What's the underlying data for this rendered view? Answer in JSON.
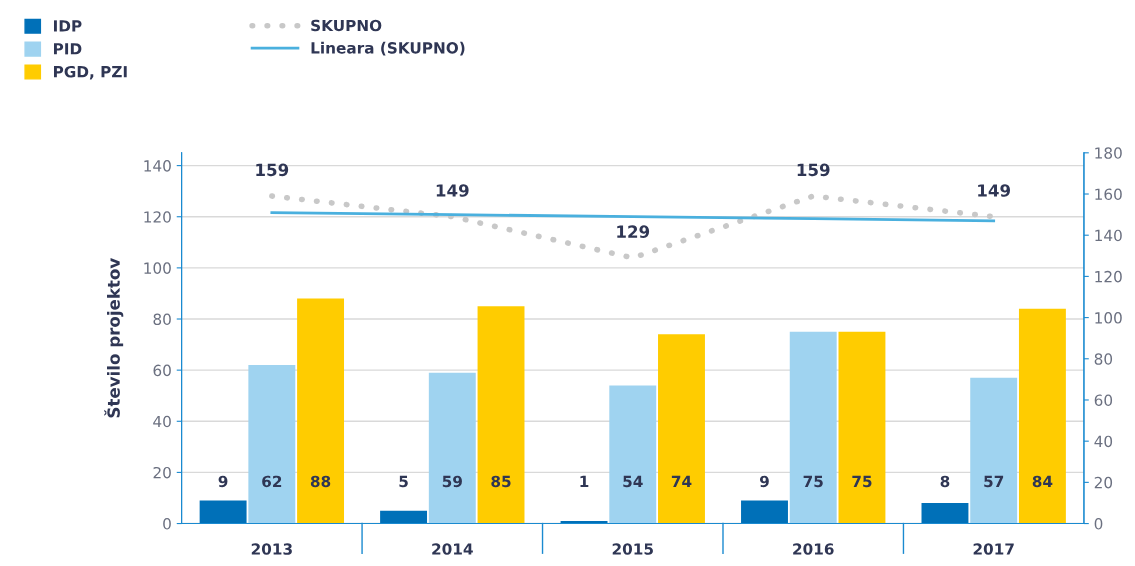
{
  "chart_data": {
    "type": "bar",
    "ylabel": "Število projektov",
    "categories": [
      "2013",
      "2014",
      "2015",
      "2016",
      "2017"
    ],
    "series": [
      {
        "name": "IDP",
        "color": "#0070b8",
        "values": [
          9,
          5,
          1,
          9,
          8
        ],
        "data_labels": true
      },
      {
        "name": "PID",
        "color": "#9fd3f0",
        "values": [
          62,
          59,
          54,
          75,
          57
        ],
        "data_labels": true
      },
      {
        "name": "PGD, PZI",
        "color": "#ffcc00",
        "values": [
          88,
          85,
          74,
          75,
          84
        ],
        "data_labels": true
      },
      {
        "name": "SKUPNO",
        "type": "line",
        "axis": "y2",
        "color": "#c8c8c8",
        "line_style": "dotted",
        "values": [
          159,
          149,
          129,
          159,
          149
        ],
        "data_labels": true
      },
      {
        "name": "Lineara (SKUPNO)",
        "type": "line",
        "axis": "y2",
        "color": "#4ab0de",
        "line_style": "solid",
        "values": [
          151,
          150,
          149,
          148,
          147
        ]
      }
    ],
    "ylim": [
      0,
      145
    ],
    "yticks": [
      0,
      20,
      40,
      60,
      80,
      100,
      120,
      140
    ],
    "y2lim": [
      0,
      180
    ],
    "y2ticks": [
      0,
      20,
      40,
      60,
      80,
      100,
      120,
      140,
      160,
      180
    ],
    "grid": "y",
    "legend": "top left"
  }
}
